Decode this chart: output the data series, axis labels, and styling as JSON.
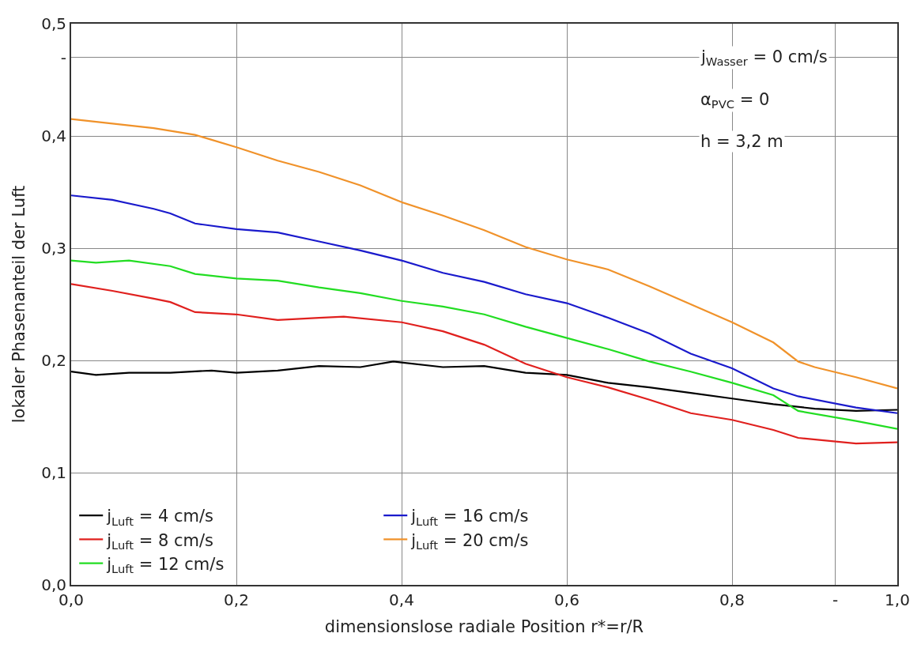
{
  "chart_data": {
    "type": "line",
    "xlabel": "dimensionslose radiale Position r*=r/R",
    "ylabel": "lokaler Phasenanteil der Luft",
    "xlim": [
      0,
      1
    ],
    "ylim": [
      0,
      0.5
    ],
    "xticks": [
      {
        "value": 0,
        "label": "0,0"
      },
      {
        "value": 0.2,
        "label": "0,2"
      },
      {
        "value": 0.4,
        "label": "0,4"
      },
      {
        "value": 0.6,
        "label": "0,6"
      },
      {
        "value": 0.8,
        "label": "0,8"
      },
      {
        "value": 0.925,
        "label": "-"
      },
      {
        "value": 1,
        "label": "1,0"
      }
    ],
    "yticks": [
      {
        "value": 0,
        "label": "0,0"
      },
      {
        "value": 0.1,
        "label": "0,1"
      },
      {
        "value": 0.2,
        "label": "0,2"
      },
      {
        "value": 0.3,
        "label": "0,3"
      },
      {
        "value": 0.4,
        "label": "0,4"
      },
      {
        "value": 0.47,
        "label": "-"
      },
      {
        "value": 0.5,
        "label": "0,5"
      }
    ],
    "grid": true,
    "legend": "bottom left",
    "marker": "none",
    "line_style": "solid",
    "annotations": [
      "j$_{Wasser}$ = 0 cm/s",
      "α$_{PVC}$ = 0",
      "h = 3,2 m"
    ],
    "series": [
      {
        "name": "j$_{Luft}$ = 4 cm/s",
        "color": "#000000",
        "x": [
          0,
          0.03,
          0.07,
          0.12,
          0.17,
          0.2,
          0.25,
          0.3,
          0.35,
          0.39,
          0.45,
          0.5,
          0.55,
          0.6,
          0.65,
          0.7,
          0.75,
          0.8,
          0.85,
          0.9,
          0.95,
          1.0
        ],
        "values": [
          0.19,
          0.187,
          0.189,
          0.189,
          0.191,
          0.189,
          0.191,
          0.195,
          0.194,
          0.199,
          0.194,
          0.195,
          0.189,
          0.187,
          0.18,
          0.176,
          0.171,
          0.166,
          0.161,
          0.157,
          0.155,
          0.156
        ]
      },
      {
        "name": "j$_{Luft}$ = 8 cm/s",
        "color": "#e0201e",
        "x": [
          0,
          0.05,
          0.1,
          0.12,
          0.15,
          0.2,
          0.25,
          0.3,
          0.33,
          0.4,
          0.45,
          0.5,
          0.55,
          0.6,
          0.65,
          0.7,
          0.75,
          0.8,
          0.85,
          0.88,
          0.95,
          1.0
        ],
        "values": [
          0.268,
          0.262,
          0.255,
          0.252,
          0.243,
          0.241,
          0.236,
          0.238,
          0.239,
          0.234,
          0.226,
          0.214,
          0.197,
          0.185,
          0.176,
          0.165,
          0.153,
          0.147,
          0.138,
          0.131,
          0.126,
          0.127
        ]
      },
      {
        "name": "j$_{Luft}$ = 12 cm/s",
        "color": "#22dd22",
        "x": [
          0,
          0.03,
          0.07,
          0.12,
          0.15,
          0.2,
          0.25,
          0.3,
          0.35,
          0.4,
          0.45,
          0.5,
          0.55,
          0.6,
          0.65,
          0.7,
          0.75,
          0.8,
          0.85,
          0.88,
          0.95,
          1.0
        ],
        "values": [
          0.289,
          0.287,
          0.289,
          0.284,
          0.277,
          0.273,
          0.271,
          0.265,
          0.26,
          0.253,
          0.248,
          0.241,
          0.23,
          0.22,
          0.21,
          0.199,
          0.19,
          0.18,
          0.169,
          0.155,
          0.146,
          0.139
        ]
      },
      {
        "name": "j$_{Luft}$ = 16 cm/s",
        "color": "#1a1acc",
        "x": [
          0,
          0.05,
          0.1,
          0.12,
          0.15,
          0.2,
          0.25,
          0.3,
          0.35,
          0.4,
          0.45,
          0.5,
          0.55,
          0.6,
          0.65,
          0.7,
          0.75,
          0.8,
          0.85,
          0.88,
          0.95,
          1.0
        ],
        "values": [
          0.347,
          0.343,
          0.335,
          0.331,
          0.322,
          0.317,
          0.314,
          0.306,
          0.298,
          0.289,
          0.278,
          0.27,
          0.259,
          0.251,
          0.238,
          0.224,
          0.206,
          0.193,
          0.175,
          0.168,
          0.158,
          0.153
        ]
      },
      {
        "name": "j$_{Luft}$ = 20 cm/s",
        "color": "#f0922a",
        "x": [
          0,
          0.05,
          0.1,
          0.15,
          0.2,
          0.25,
          0.3,
          0.35,
          0.4,
          0.45,
          0.5,
          0.55,
          0.6,
          0.65,
          0.7,
          0.75,
          0.8,
          0.85,
          0.88,
          0.9,
          0.95,
          1.0
        ],
        "values": [
          0.415,
          0.411,
          0.407,
          0.401,
          0.39,
          0.378,
          0.368,
          0.356,
          0.341,
          0.329,
          0.316,
          0.301,
          0.29,
          0.281,
          0.266,
          0.25,
          0.234,
          0.216,
          0.199,
          0.194,
          0.185,
          0.175
        ]
      }
    ]
  }
}
